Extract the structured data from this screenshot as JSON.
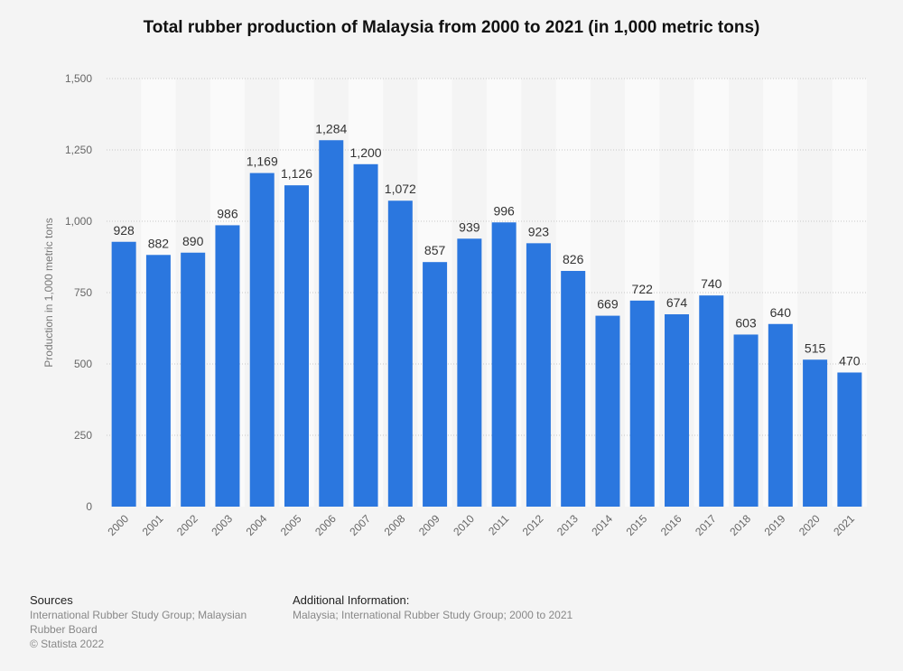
{
  "chart_data": {
    "type": "bar",
    "title": "Total rubber production of Malaysia from 2000 to 2021 (in 1,000 metric tons)",
    "xlabel": "",
    "ylabel": "Production in 1,000 metric tons",
    "ylim": [
      0,
      1500
    ],
    "yticks": [
      0,
      250,
      500,
      750,
      1000,
      1250,
      1500
    ],
    "ytick_labels": [
      "0",
      "250",
      "500",
      "750",
      "1,000",
      "1,250",
      "1,500"
    ],
    "categories": [
      "2000",
      "2001",
      "2002",
      "2003",
      "2004",
      "2005",
      "2006",
      "2007",
      "2008",
      "2009",
      "2010",
      "2011",
      "2012",
      "2013",
      "2014",
      "2015",
      "2016",
      "2017",
      "2018",
      "2019",
      "2020",
      "2021"
    ],
    "values": [
      928,
      882,
      890,
      986,
      1169,
      1126,
      1284,
      1200,
      1072,
      857,
      939,
      996,
      923,
      826,
      669,
      722,
      674,
      740,
      603,
      640,
      515,
      470
    ],
    "value_labels": [
      "928",
      "882",
      "890",
      "986",
      "1,169",
      "1,126",
      "1,284",
      "1,200",
      "1,072",
      "857",
      "939",
      "996",
      "923",
      "826",
      "669",
      "722",
      "674",
      "740",
      "603",
      "640",
      "515",
      "470"
    ],
    "bar_color": "#2b77df",
    "grid": true
  },
  "footer": {
    "sources_heading": "Sources",
    "sources_line1": "International Rubber Study Group; Malaysian",
    "sources_line2": "Rubber Board",
    "copyright": "© Statista 2022",
    "info_heading": "Additional Information:",
    "info_text": "Malaysia; International Rubber Study Group; 2000 to 2021"
  }
}
